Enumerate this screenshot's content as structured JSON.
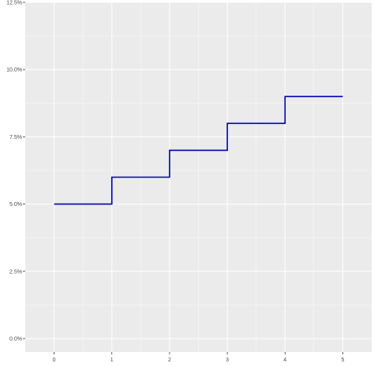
{
  "chart_data": {
    "type": "line",
    "step": true,
    "title": "",
    "xlabel": "",
    "ylabel": "",
    "xlim": [
      -0.5,
      5.5
    ],
    "ylim": [
      -0.005,
      0.125
    ],
    "x_ticks": [
      0,
      1,
      2,
      3,
      4,
      5
    ],
    "x_tick_labels": [
      "0",
      "1",
      "2",
      "3",
      "4",
      "5"
    ],
    "y_ticks": [
      0,
      0.025,
      0.05,
      0.075,
      0.1,
      0.125
    ],
    "y_tick_labels": [
      "0.0%",
      "2.5%",
      "5.0%",
      "7.5%",
      "10.0%",
      "12.5%"
    ],
    "grid": true,
    "series": [
      {
        "x": [
          0,
          1,
          2,
          3,
          4,
          5
        ],
        "y": [
          0.05,
          0.06,
          0.07,
          0.08,
          0.09,
          0.09
        ],
        "color": "#0000b3"
      }
    ],
    "panel_background": "#ebebeb",
    "grid_color": "#ffffff"
  }
}
